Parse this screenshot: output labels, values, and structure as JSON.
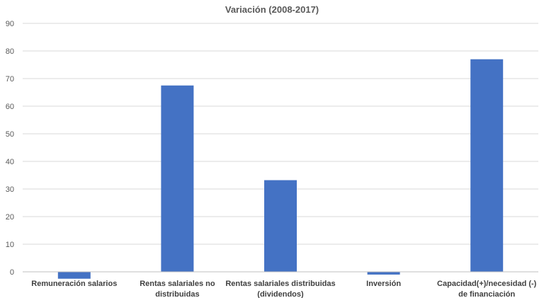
{
  "chart_data": {
    "type": "bar",
    "title": "Variación (2008-2017)",
    "categories": [
      [
        "Remuneración salarios"
      ],
      [
        "Rentas salariales no",
        "distribuidas"
      ],
      [
        "Rentas salariales distribuidas",
        "(dividendos)"
      ],
      [
        "Inversión"
      ],
      [
        "Capacidad(+)/necesidad (-)",
        "de financiación"
      ]
    ],
    "values": [
      -2.5,
      67.5,
      33.2,
      -1.0,
      77.0
    ],
    "ylim": [
      -10,
      90
    ],
    "yticks": [
      0,
      10,
      20,
      30,
      40,
      50,
      60,
      70,
      80,
      90
    ],
    "ytick_labels": [
      "0",
      "10",
      "20",
      "30",
      "40",
      "50",
      "60",
      "70",
      "80",
      "90"
    ],
    "grid": true,
    "colors": {
      "bar": "#4472c4"
    }
  }
}
